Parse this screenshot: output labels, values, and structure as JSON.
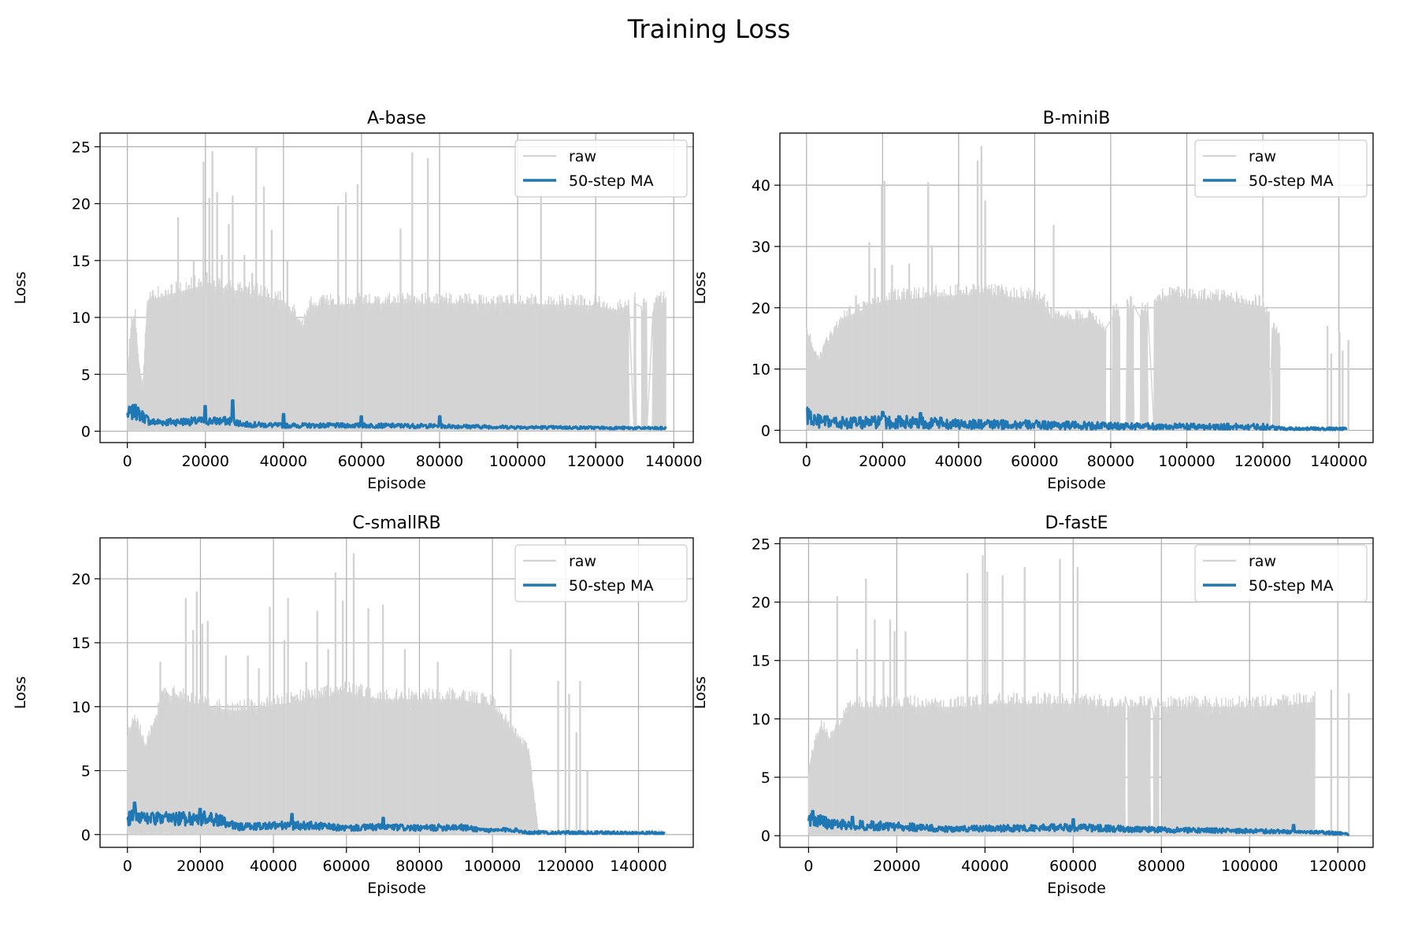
{
  "figure": {
    "title": "Training Loss"
  },
  "chart_data": [
    {
      "type": "line",
      "title": "A-base",
      "xlabel": "Episode",
      "ylabel": "Loss",
      "xlim": [
        -7000,
        145000
      ],
      "ylim": [
        -1.0,
        26.2
      ],
      "xticks": [
        0,
        20000,
        40000,
        60000,
        80000,
        100000,
        120000,
        140000
      ],
      "yticks": [
        0,
        5,
        10,
        15,
        20,
        25
      ],
      "grid": true,
      "legend": {
        "position": "top-right",
        "entries": [
          "raw",
          "50-step MA"
        ]
      },
      "series": [
        {
          "name": "raw",
          "color": "#d3d3d3",
          "x": [
            0,
            1000,
            2000,
            3000,
            4000,
            5000,
            10000,
            20000,
            40000,
            45000,
            47000,
            60000,
            80000,
            100000,
            120000,
            125000,
            128000,
            131000,
            134000,
            138000
          ],
          "y_upper": [
            5.5,
            10.5,
            11,
            6.5,
            4,
            12.5,
            13,
            14,
            12.5,
            10,
            12,
            12.2,
            12.2,
            12.2,
            12,
            11.5,
            12,
            12.3,
            12.3,
            12.3
          ],
          "spikes": [
            [
              13000,
              18.8
            ],
            [
              17000,
              15
            ],
            [
              19500,
              23.7
            ],
            [
              21000,
              20.5
            ],
            [
              21800,
              24.6
            ],
            [
              23000,
              21
            ],
            [
              24200,
              15.5
            ],
            [
              26000,
              18.2
            ],
            [
              27000,
              20.7
            ],
            [
              30000,
              15.5
            ],
            [
              32000,
              13.9
            ],
            [
              33000,
              25
            ],
            [
              35000,
              21.5
            ],
            [
              37000,
              17.7
            ],
            [
              41000,
              15
            ],
            [
              54000,
              19.8
            ],
            [
              56000,
              21
            ],
            [
              59000,
              21.7
            ],
            [
              60000,
              13.3
            ],
            [
              70000,
              17.8
            ],
            [
              73000,
              24.5
            ],
            [
              77000,
              24
            ],
            [
              106000,
              21
            ]
          ],
          "gaps": [
            [
              128500,
              129800
            ],
            [
              130300,
              131700
            ],
            [
              133200,
              134600
            ]
          ]
        },
        {
          "name": "50-step MA",
          "color": "#1f77b4",
          "x": [
            0,
            2000,
            4000,
            6000,
            10000,
            20000,
            27000,
            30000,
            40000,
            50000,
            60000,
            80000,
            100000,
            120000,
            138000
          ],
          "y": [
            1.5,
            1.7,
            1.3,
            0.8,
            0.8,
            0.9,
            0.9,
            0.6,
            0.5,
            0.5,
            0.5,
            0.45,
            0.35,
            0.3,
            0.25
          ],
          "band": 0.4,
          "peaks": [
            [
              2000,
              2.3
            ],
            [
              20000,
              2.2
            ],
            [
              27000,
              2.7
            ],
            [
              40000,
              1.5
            ],
            [
              60000,
              1.3
            ],
            [
              80000,
              1.3
            ]
          ]
        }
      ]
    },
    {
      "type": "line",
      "title": "B-miniB",
      "xlabel": "Episode",
      "ylabel": "Loss",
      "xlim": [
        -7000,
        149000
      ],
      "ylim": [
        -2.0,
        48.5
      ],
      "xticks": [
        0,
        20000,
        40000,
        60000,
        80000,
        100000,
        120000,
        140000
      ],
      "yticks": [
        0,
        10,
        20,
        30,
        40
      ],
      "grid": true,
      "legend": {
        "position": "top-right",
        "entries": [
          "raw",
          "50-step MA"
        ]
      },
      "series": [
        {
          "name": "raw",
          "color": "#d3d3d3",
          "x": [
            0,
            1500,
            3000,
            5000,
            10000,
            20000,
            40000,
            50000,
            62000,
            65000,
            75000,
            78000,
            80000,
            85000,
            90000,
            95000,
            100000,
            110000,
            120000,
            124500
          ],
          "y_upper": [
            18,
            15,
            12,
            15,
            20,
            23,
            24,
            24,
            23,
            19.5,
            20,
            18,
            21,
            22,
            21,
            24,
            23.5,
            23,
            22,
            16
          ],
          "spikes": [
            [
              13000,
              22
            ],
            [
              16500,
              30.7
            ],
            [
              18000,
              26.5
            ],
            [
              19800,
              40
            ],
            [
              20500,
              40.7
            ],
            [
              22500,
              27
            ],
            [
              27000,
              27.2
            ],
            [
              32000,
              40.5
            ],
            [
              33000,
              30.2
            ],
            [
              45000,
              44
            ],
            [
              46000,
              46.4
            ],
            [
              47000,
              37.5
            ],
            [
              65000,
              33.5
            ]
          ],
          "gaps": [
            [
              78700,
              80500
            ],
            [
              82500,
              84200
            ],
            [
              86000,
              87800
            ],
            [
              89700,
              91300
            ],
            [
              121800,
              122500
            ],
            [
              124800,
              136500
            ],
            [
              138800,
              140000
            ],
            [
              140800,
              142000
            ]
          ],
          "late_spikes": [
            [
              137000,
              17
            ],
            [
              138000,
              12.5
            ],
            [
              140200,
              16
            ],
            [
              141000,
              13
            ],
            [
              142500,
              14.7
            ]
          ]
        },
        {
          "name": "50-step MA",
          "color": "#1f77b4",
          "x": [
            0,
            2000,
            5000,
            10000,
            20000,
            30000,
            40000,
            60000,
            80000,
            100000,
            120000,
            125000,
            142000
          ],
          "y": [
            2.3,
            1.6,
            1.3,
            1.2,
            1.3,
            1.3,
            1.0,
            0.9,
            0.7,
            0.6,
            0.6,
            0.3,
            0.2
          ],
          "band": 0.8,
          "peaks": [
            [
              0,
              3.7
            ],
            [
              20000,
              3.0
            ],
            [
              30000,
              2.8
            ]
          ]
        }
      ]
    },
    {
      "type": "line",
      "title": "C-smallRB",
      "xlabel": "Episode",
      "ylabel": "Loss",
      "xlim": [
        -7500,
        155000
      ],
      "ylim": [
        -1.0,
        23.2
      ],
      "xticks": [
        0,
        20000,
        40000,
        60000,
        80000,
        100000,
        120000,
        140000
      ],
      "yticks": [
        0,
        5,
        10,
        15,
        20
      ],
      "grid": true,
      "legend": {
        "position": "top-right",
        "entries": [
          "raw",
          "50-step MA"
        ]
      },
      "series": [
        {
          "name": "raw",
          "color": "#d3d3d3",
          "x": [
            0,
            2000,
            5000,
            8000,
            10000,
            20000,
            30000,
            40000,
            50000,
            60000,
            70000,
            80000,
            90000,
            100000,
            102500,
            105000,
            110000,
            112500,
            118000,
            126000,
            130000,
            147500
          ],
          "y_upper": [
            8.5,
            10,
            7.5,
            10,
            12,
            11,
            10.5,
            11,
            11.5,
            12,
            11.5,
            11.5,
            11.5,
            11,
            10,
            9,
            7,
            0.4,
            0.3,
            0.3,
            0.3,
            0.2
          ],
          "spikes": [
            [
              9000,
              13.5
            ],
            [
              16000,
              18.5
            ],
            [
              18000,
              16
            ],
            [
              19000,
              19
            ],
            [
              20500,
              16.5
            ],
            [
              22000,
              16.7
            ],
            [
              27000,
              14
            ],
            [
              33000,
              14
            ],
            [
              36000,
              13
            ],
            [
              39000,
              17.8
            ],
            [
              43000,
              15.2
            ],
            [
              44000,
              18.5
            ],
            [
              49000,
              13.5
            ],
            [
              52000,
              17.5
            ],
            [
              55000,
              14.5
            ],
            [
              57000,
              20.5
            ],
            [
              59000,
              18.3
            ],
            [
              62000,
              22
            ],
            [
              66000,
              17.7
            ],
            [
              70000,
              18
            ],
            [
              76000,
              14.5
            ],
            [
              85000,
              13.5
            ],
            [
              105000,
              14.5
            ]
          ],
          "tail_bumps": [
            [
              118000,
              12
            ],
            [
              120000,
              10
            ],
            [
              121000,
              11
            ],
            [
              123000,
              8
            ],
            [
              124000,
              12
            ],
            [
              126000,
              5
            ]
          ]
        },
        {
          "name": "50-step MA",
          "color": "#1f77b4",
          "x": [
            0,
            2000,
            5000,
            10000,
            20000,
            25000,
            30000,
            40000,
            50000,
            60000,
            70000,
            80000,
            90000,
            100000,
            105000,
            110000,
            147000
          ],
          "y": [
            1.2,
            1.7,
            1.3,
            1.2,
            1.3,
            1.1,
            0.6,
            0.7,
            0.7,
            0.5,
            0.6,
            0.5,
            0.6,
            0.3,
            0.4,
            0.15,
            0.1
          ],
          "band": 0.45,
          "peaks": [
            [
              2000,
              2.5
            ],
            [
              20000,
              2.0
            ],
            [
              45000,
              1.6
            ],
            [
              70000,
              1.3
            ]
          ]
        }
      ]
    },
    {
      "type": "line",
      "title": "D-fastE",
      "xlabel": "Episode",
      "ylabel": "Loss",
      "xlim": [
        -6500,
        128000
      ],
      "ylim": [
        -1.0,
        25.5
      ],
      "xticks": [
        0,
        20000,
        40000,
        60000,
        80000,
        100000,
        120000
      ],
      "yticks": [
        0,
        5,
        10,
        15,
        20,
        25
      ],
      "grid": true,
      "legend": {
        "position": "top-right",
        "entries": [
          "raw",
          "50-step MA"
        ]
      },
      "series": [
        {
          "name": "raw",
          "color": "#d3d3d3",
          "x": [
            0,
            1000,
            3000,
            5000,
            8000,
            10000,
            20000,
            30000,
            35000,
            40000,
            60000,
            70000,
            80000,
            90000,
            100000,
            110000,
            114800
          ],
          "y_upper": [
            6,
            8,
            10,
            9,
            11,
            12,
            12,
            12,
            12,
            12.3,
            12.3,
            12,
            12,
            12,
            12,
            12.2,
            12.5
          ],
          "spikes": [
            [
              6500,
              20.5
            ],
            [
              11000,
              16
            ],
            [
              13000,
              22
            ],
            [
              15000,
              18.5
            ],
            [
              17000,
              15
            ],
            [
              18500,
              18.5
            ],
            [
              19500,
              17.5
            ],
            [
              22000,
              17.5
            ],
            [
              36000,
              22.5
            ],
            [
              39500,
              24
            ],
            [
              40500,
              22.6
            ],
            [
              44000,
              22.3
            ],
            [
              49000,
              23
            ],
            [
              57000,
              23.7
            ],
            [
              61000,
              23
            ]
          ],
          "gaps": [
            [
              71800,
              72400
            ],
            [
              77500,
              78200
            ],
            [
              79500,
              80200
            ],
            [
              115200,
              118200
            ],
            [
              119300,
              119800
            ]
          ],
          "late_spikes": [
            [
              118500,
              12.5
            ],
            [
              120000,
              12.3
            ],
            [
              122500,
              12.2
            ]
          ]
        },
        {
          "name": "50-step MA",
          "color": "#1f77b4",
          "x": [
            0,
            2000,
            5000,
            10000,
            20000,
            30000,
            40000,
            60000,
            80000,
            100000,
            115000,
            122500
          ],
          "y": [
            1.4,
            1.3,
            1.0,
            0.9,
            0.8,
            0.6,
            0.6,
            0.7,
            0.5,
            0.4,
            0.3,
            0.15
          ],
          "band": 0.45,
          "peaks": [
            [
              1000,
              2.1
            ],
            [
              10000,
              1.6
            ],
            [
              60000,
              1.4
            ],
            [
              110000,
              0.9
            ]
          ]
        }
      ]
    }
  ]
}
